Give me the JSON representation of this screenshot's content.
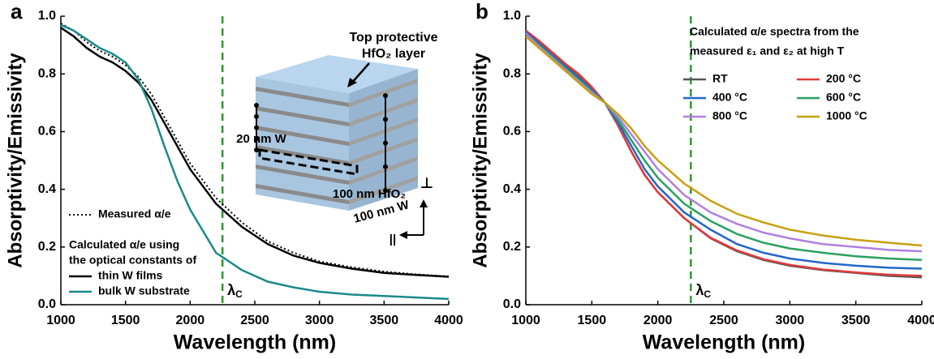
{
  "chart_data": [
    {
      "type": "line",
      "panel_label": "a",
      "xlabel": "Wavelength (nm)",
      "ylabel": "Absorptivity/Emissivity",
      "xlim": [
        1000,
        4000
      ],
      "ylim": [
        0,
        1
      ],
      "xticks": [
        1000,
        1500,
        2000,
        2500,
        3000,
        3500,
        4000
      ],
      "yticks": [
        {
          "value": 0,
          "label": "0.0"
        },
        0.2,
        0.4,
        0.6,
        0.8,
        {
          "value": 1,
          "label": "1.0"
        }
      ],
      "x": [
        1000,
        1100,
        1200,
        1300,
        1400,
        1500,
        1600,
        1700,
        1800,
        1900,
        2000,
        2200,
        2400,
        2600,
        2800,
        3000,
        3250,
        3500,
        3750,
        4000
      ],
      "series": [
        {
          "name": "Measured α/e",
          "color": "#000000",
          "style": "dotted",
          "values": [
            0.975,
            0.95,
            0.91,
            0.88,
            0.86,
            0.83,
            0.79,
            0.73,
            0.65,
            0.57,
            0.49,
            0.37,
            0.285,
            0.22,
            0.18,
            0.15,
            0.13,
            0.115,
            0.105,
            0.098
          ]
        },
        {
          "name": "thin W films",
          "color": "#000000",
          "style": "solid",
          "values": [
            0.96,
            0.93,
            0.89,
            0.86,
            0.84,
            0.81,
            0.77,
            0.71,
            0.63,
            0.55,
            0.47,
            0.35,
            0.27,
            0.21,
            0.17,
            0.145,
            0.125,
            0.11,
            0.103,
            0.097
          ]
        },
        {
          "name": "bulk W substrate",
          "color": "#1a8a8a",
          "style": "solid",
          "values": [
            0.97,
            0.95,
            0.92,
            0.89,
            0.87,
            0.84,
            0.78,
            0.68,
            0.55,
            0.43,
            0.33,
            0.18,
            0.12,
            0.08,
            0.06,
            0.045,
            0.035,
            0.03,
            0.025,
            0.02
          ]
        }
      ],
      "legend_title": [
        "Calculated α/e using",
        "the optical constants of"
      ],
      "vline": {
        "value": 2250,
        "color": "#2a9a2a",
        "symbol": "λ",
        "subscript": "C"
      },
      "annotations": [
        "Top protective",
        "HfO₂ layer",
        "20 nm W",
        "100 nm HfO₂",
        "100 nm W",
        "⊥",
        "||"
      ]
    },
    {
      "type": "line",
      "panel_label": "b",
      "xlabel": "Wavelength (nm)",
      "ylabel": "Absorptivity/Emissivity",
      "xlim": [
        1000,
        4000
      ],
      "ylim": [
        0,
        1
      ],
      "xticks": [
        1000,
        1500,
        2000,
        2500,
        3000,
        3500,
        4000
      ],
      "yticks": [
        {
          "value": 0,
          "label": "0.0"
        },
        0.2,
        0.4,
        0.6,
        0.8,
        {
          "value": 1,
          "label": "1.0"
        }
      ],
      "x": [
        1000,
        1100,
        1200,
        1300,
        1400,
        1500,
        1600,
        1700,
        1800,
        1900,
        2000,
        2200,
        2400,
        2600,
        2800,
        3000,
        3250,
        3500,
        3750,
        4000
      ],
      "series": [
        {
          "name": "RT",
          "color": "#555555",
          "style": "solid",
          "values": [
            0.95,
            0.91,
            0.87,
            0.83,
            0.79,
            0.75,
            0.7,
            0.62,
            0.53,
            0.45,
            0.39,
            0.3,
            0.23,
            0.185,
            0.155,
            0.135,
            0.12,
            0.11,
            0.1,
            0.095
          ]
        },
        {
          "name": "200 °C",
          "color": "#e03b3b",
          "style": "solid",
          "values": [
            0.95,
            0.915,
            0.875,
            0.835,
            0.8,
            0.755,
            0.7,
            0.62,
            0.53,
            0.45,
            0.39,
            0.3,
            0.232,
            0.188,
            0.158,
            0.138,
            0.122,
            0.112,
            0.104,
            0.1
          ]
        },
        {
          "name": "400 °C",
          "color": "#2266cc",
          "style": "solid",
          "values": [
            0.945,
            0.905,
            0.865,
            0.825,
            0.785,
            0.745,
            0.7,
            0.63,
            0.55,
            0.47,
            0.41,
            0.32,
            0.26,
            0.21,
            0.18,
            0.16,
            0.145,
            0.135,
            0.128,
            0.125
          ]
        },
        {
          "name": "600 °C",
          "color": "#2aa060",
          "style": "solid",
          "values": [
            0.94,
            0.9,
            0.86,
            0.82,
            0.78,
            0.74,
            0.7,
            0.64,
            0.57,
            0.5,
            0.44,
            0.35,
            0.29,
            0.245,
            0.215,
            0.195,
            0.18,
            0.168,
            0.16,
            0.155
          ]
        },
        {
          "name": "800 °C",
          "color": "#b07fe0",
          "style": "solid",
          "values": [
            0.94,
            0.895,
            0.855,
            0.815,
            0.775,
            0.735,
            0.7,
            0.65,
            0.59,
            0.53,
            0.47,
            0.38,
            0.32,
            0.28,
            0.25,
            0.23,
            0.21,
            0.2,
            0.19,
            0.185
          ]
        },
        {
          "name": "1000 °C",
          "color": "#c8a012",
          "style": "solid",
          "values": [
            0.93,
            0.89,
            0.85,
            0.81,
            0.77,
            0.73,
            0.7,
            0.66,
            0.61,
            0.55,
            0.5,
            0.42,
            0.36,
            0.315,
            0.285,
            0.26,
            0.24,
            0.225,
            0.215,
            0.205
          ]
        }
      ],
      "legend_title": [
        "Calculated α/e spectra from the",
        "measured ε₁ and ε₂ at high T"
      ],
      "vline": {
        "value": 2250,
        "color": "#2a9a2a",
        "symbol": "λ",
        "subscript": "C"
      }
    }
  ]
}
